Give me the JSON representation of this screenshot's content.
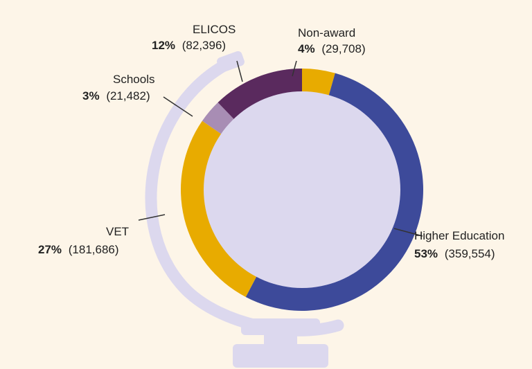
{
  "chart_data": {
    "type": "pie",
    "title": "",
    "slices": [
      {
        "name": "Non-award",
        "percent": "4%",
        "value": 29708,
        "value_label": "(29,708)",
        "color": "#e8ab00"
      },
      {
        "name": "Higher Education",
        "percent": "53%",
        "value": 359554,
        "value_label": "(359,554)",
        "color": "#3d4a9a"
      },
      {
        "name": "VET",
        "percent": "27%",
        "value": 181686,
        "value_label": "(181,686)",
        "color": "#e8ab00"
      },
      {
        "name": "Schools",
        "percent": "3%",
        "value": 21482,
        "value_label": "(21,482)",
        "color": "#a88db4"
      },
      {
        "name": "ELICOS",
        "percent": "12%",
        "value": 82396,
        "value_label": "(82,396)",
        "color": "#5a2a5e"
      }
    ],
    "start_angle_deg": 0,
    "direction": "clockwise",
    "hole_color": "#dcd8ee",
    "globe_stand_color": "#dcd8ee",
    "background": "#fdf5e8"
  }
}
